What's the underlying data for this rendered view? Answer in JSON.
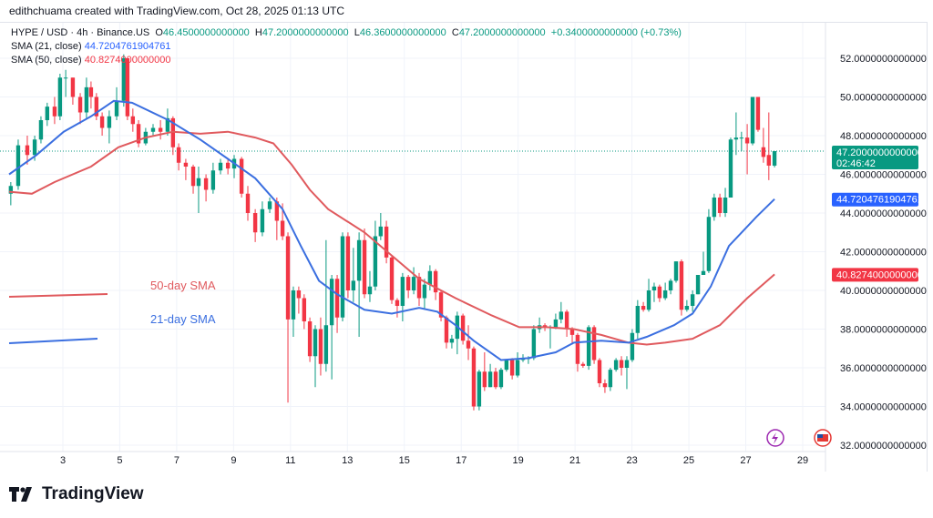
{
  "credit": "edithchuama created with TradingView.com, Oct 28, 2025 01:13 UTC",
  "legend": {
    "symbol": "HYPE / USD · 4h · Binance.US",
    "o_label": "O",
    "o": "46.4500000000000",
    "h_label": "H",
    "h": "47.2000000000000",
    "l_label": "L",
    "l": "46.3600000000000",
    "c_label": "C",
    "c": "47.2000000000000",
    "change": "+0.3400000000000 (+0.73%)",
    "sma21_label": "SMA (21, close)",
    "sma21": "44.7204761904761",
    "sma50_label": "SMA (50, close)",
    "sma50": "40.8274000000000"
  },
  "annotations": {
    "sma50": "50-day SMA",
    "sma21": "21-day SMA"
  },
  "price_labels": {
    "last": "47.2000000000000",
    "countdown": "02:46:42",
    "sma21": "44.7204761904761",
    "sma50": "40.8274000000000"
  },
  "brand": "TradingView",
  "icons": [
    "lightning-icon",
    "us-flag-icon"
  ],
  "colors": {
    "up": "#089981",
    "down": "#f23645",
    "sma21": "#2962ff",
    "sma50": "#f23645",
    "grid": "#f0f3fa"
  },
  "chart_data": {
    "type": "candlestick",
    "xlabel": "",
    "ylabel": "",
    "x_ticks": [
      "3",
      "5",
      "7",
      "9",
      "11",
      "13",
      "15",
      "17",
      "19",
      "21",
      "23",
      "25",
      "27",
      "29"
    ],
    "y_ticks": [
      "52.0000000000000",
      "50.0000000000000",
      "48.0000000000000",
      "46.0000000000000",
      "44.0000000000000",
      "42.0000000000000",
      "40.0000000000000",
      "38.0000000000000",
      "36.0000000000000",
      "34.0000000000000",
      "32.0000000000000"
    ],
    "ylim": [
      32,
      52
    ],
    "xlim_days": [
      1,
      30
    ],
    "grid": true,
    "candles_day_ohlc": [
      [
        1.17,
        45.0,
        45.6,
        44.4,
        45.4
      ],
      [
        1.43,
        45.4,
        47.8,
        45.2,
        47.5
      ],
      [
        1.75,
        47.5,
        48.0,
        46.5,
        47.0
      ],
      [
        2.01,
        47.0,
        48.0,
        46.7,
        47.8
      ],
      [
        2.23,
        47.8,
        49.0,
        47.6,
        48.8
      ],
      [
        2.45,
        48.8,
        49.7,
        48.5,
        49.5
      ],
      [
        2.71,
        49.5,
        50.0,
        48.6,
        49.0
      ],
      [
        2.9,
        49.0,
        51.2,
        48.8,
        51.0
      ],
      [
        3.1,
        51.0,
        51.4,
        50.0,
        51.0
      ],
      [
        3.35,
        51.0,
        51.0,
        49.6,
        50.0
      ],
      [
        3.61,
        50.0,
        50.2,
        48.6,
        49.2
      ],
      [
        3.83,
        49.2,
        51.0,
        48.9,
        50.5
      ],
      [
        3.99,
        50.5,
        50.8,
        49.4,
        50.0
      ],
      [
        4.18,
        50.0,
        50.2,
        48.8,
        49.0
      ],
      [
        4.38,
        49.0,
        49.2,
        48.0,
        48.4
      ],
      [
        4.63,
        48.4,
        49.3,
        47.6,
        49.0
      ],
      [
        4.89,
        49.0,
        50.5,
        48.8,
        49.8
      ],
      [
        5.14,
        49.8,
        52.2,
        49.5,
        52.0
      ],
      [
        5.27,
        52.0,
        52.0,
        48.8,
        49.0
      ],
      [
        5.46,
        49.0,
        49.4,
        48.2,
        48.6
      ],
      [
        5.66,
        48.6,
        48.8,
        47.4,
        47.6
      ],
      [
        5.91,
        47.6,
        48.4,
        47.5,
        48.2
      ],
      [
        6.17,
        48.2,
        48.6,
        48.0,
        48.4
      ],
      [
        6.43,
        48.4,
        48.8,
        47.8,
        48.2
      ],
      [
        6.68,
        48.2,
        49.4,
        48.0,
        48.9
      ],
      [
        6.87,
        48.9,
        49.0,
        47.0,
        47.4
      ],
      [
        7.07,
        47.4,
        47.6,
        46.2,
        46.6
      ],
      [
        7.32,
        46.6,
        46.8,
        45.7,
        46.4
      ],
      [
        7.58,
        46.4,
        46.5,
        45.0,
        45.4
      ],
      [
        7.77,
        45.4,
        46.4,
        44.0,
        45.8
      ],
      [
        8.03,
        45.8,
        46.0,
        44.6,
        45.2
      ],
      [
        8.28,
        45.2,
        46.6,
        45.0,
        46.2
      ],
      [
        8.54,
        46.2,
        46.8,
        46.0,
        46.6
      ],
      [
        8.8,
        46.6,
        46.8,
        46.0,
        46.3
      ],
      [
        9.02,
        46.3,
        47.0,
        45.8,
        46.8
      ],
      [
        9.28,
        46.8,
        46.9,
        44.8,
        45.0
      ],
      [
        9.5,
        45.0,
        45.4,
        43.6,
        44.0
      ],
      [
        9.76,
        44.0,
        44.2,
        42.5,
        43.0
      ],
      [
        10.01,
        43.0,
        44.6,
        42.8,
        44.2
      ],
      [
        10.27,
        44.2,
        44.8,
        44.0,
        44.6
      ],
      [
        10.52,
        44.6,
        44.8,
        42.6,
        43.6
      ],
      [
        10.72,
        43.6,
        44.5,
        42.6,
        42.8
      ],
      [
        10.91,
        42.8,
        43.0,
        34.2,
        38.5
      ],
      [
        11.1,
        38.5,
        40.2,
        37.6,
        40.0
      ],
      [
        11.29,
        40.0,
        40.2,
        38.8,
        39.6
      ],
      [
        11.48,
        39.6,
        39.8,
        38.0,
        38.4
      ],
      [
        11.68,
        38.4,
        38.6,
        36.3,
        36.6
      ],
      [
        11.87,
        36.6,
        38.2,
        35.0,
        38.0
      ],
      [
        12.06,
        38.0,
        38.6,
        35.6,
        36.2
      ],
      [
        12.25,
        36.2,
        42.6,
        35.8,
        38.2
      ],
      [
        12.45,
        38.2,
        40.8,
        35.4,
        40.6
      ],
      [
        12.64,
        40.6,
        40.8,
        37.8,
        38.6
      ],
      [
        12.83,
        38.6,
        43.0,
        38.4,
        42.8
      ],
      [
        13.02,
        42.8,
        43.0,
        39.6,
        40.0
      ],
      [
        13.21,
        40.0,
        42.2,
        39.4,
        40.5
      ],
      [
        13.41,
        40.5,
        43.0,
        37.6,
        42.6
      ],
      [
        13.6,
        42.6,
        43.2,
        39.6,
        39.8
      ],
      [
        13.79,
        39.8,
        41.0,
        39.4,
        40.2
      ],
      [
        13.98,
        40.2,
        43.6,
        40.0,
        42.8
      ],
      [
        14.17,
        42.8,
        44.0,
        42.6,
        43.3
      ],
      [
        14.37,
        43.3,
        43.6,
        41.4,
        41.7
      ],
      [
        14.56,
        41.7,
        41.8,
        39.3,
        39.5
      ],
      [
        14.75,
        39.5,
        39.6,
        38.6,
        39.2
      ],
      [
        14.94,
        39.2,
        40.9,
        38.4,
        40.7
      ],
      [
        15.14,
        40.7,
        40.8,
        39.6,
        40.0
      ],
      [
        15.33,
        40.0,
        41.2,
        39.8,
        40.7
      ],
      [
        15.52,
        40.7,
        40.9,
        39.2,
        39.6
      ],
      [
        15.71,
        39.6,
        40.6,
        39.0,
        40.3
      ],
      [
        15.9,
        40.3,
        41.3,
        40.0,
        41.0
      ],
      [
        16.1,
        41.0,
        41.1,
        39.5,
        39.9
      ],
      [
        16.29,
        39.9,
        40.0,
        38.4,
        38.6
      ],
      [
        16.48,
        38.6,
        38.7,
        37.0,
        37.3
      ],
      [
        16.67,
        37.3,
        37.7,
        37.0,
        37.5
      ],
      [
        16.86,
        37.5,
        38.9,
        36.7,
        38.7
      ],
      [
        17.06,
        38.7,
        38.8,
        37.2,
        37.4
      ],
      [
        17.25,
        37.4,
        38.2,
        36.4,
        37.0
      ],
      [
        17.44,
        37.0,
        37.1,
        33.8,
        34.0
      ],
      [
        17.63,
        34.0,
        35.9,
        33.8,
        35.8
      ],
      [
        17.82,
        35.8,
        36.8,
        34.8,
        35.0
      ],
      [
        18.02,
        35.0,
        36.2,
        35.0,
        35.8
      ],
      [
        18.21,
        35.8,
        36.0,
        34.9,
        35.0
      ],
      [
        18.4,
        35.0,
        36.0,
        34.9,
        35.9
      ],
      [
        18.59,
        35.9,
        36.4,
        35.8,
        36.4
      ],
      [
        18.79,
        36.4,
        36.5,
        35.4,
        35.6
      ],
      [
        18.98,
        35.6,
        36.8,
        35.5,
        36.4
      ],
      [
        19.17,
        36.4,
        36.7,
        36.3,
        36.5
      ],
      [
        19.36,
        36.5,
        36.6,
        36.2,
        36.5
      ],
      [
        19.55,
        36.5,
        38.2,
        36.4,
        38.0
      ],
      [
        19.75,
        38.0,
        38.6,
        37.8,
        38.2
      ],
      [
        19.94,
        38.2,
        38.3,
        37.9,
        38.1
      ],
      [
        20.13,
        38.1,
        38.2,
        37.0,
        38.1
      ],
      [
        20.32,
        38.1,
        38.8,
        38.0,
        38.5
      ],
      [
        20.51,
        38.5,
        39.4,
        38.3,
        38.9
      ],
      [
        20.71,
        38.9,
        39.0,
        37.6,
        38.0
      ],
      [
        20.9,
        38.0,
        38.1,
        37.2,
        37.7
      ],
      [
        21.09,
        37.7,
        37.8,
        35.8,
        36.2
      ],
      [
        21.28,
        36.2,
        36.3,
        36.0,
        36.1
      ],
      [
        21.48,
        36.1,
        38.2,
        35.9,
        38.1
      ],
      [
        21.67,
        38.1,
        38.2,
        36.2,
        36.4
      ],
      [
        21.86,
        36.4,
        36.5,
        35.0,
        35.2
      ],
      [
        22.05,
        35.2,
        35.4,
        34.7,
        35.0
      ],
      [
        22.24,
        35.0,
        36.0,
        34.8,
        35.9
      ],
      [
        22.44,
        35.9,
        36.5,
        35.8,
        36.4
      ],
      [
        22.63,
        36.4,
        36.6,
        35.6,
        36.0
      ],
      [
        22.82,
        36.0,
        36.6,
        34.9,
        36.4
      ],
      [
        23.01,
        36.4,
        38.0,
        36.3,
        37.8
      ],
      [
        23.2,
        37.8,
        39.5,
        37.5,
        39.2
      ],
      [
        23.4,
        39.2,
        39.4,
        38.9,
        39.0
      ],
      [
        23.59,
        39.0,
        40.6,
        38.9,
        40.0
      ],
      [
        23.78,
        40.0,
        40.4,
        39.4,
        40.2
      ],
      [
        23.97,
        40.2,
        40.3,
        39.4,
        39.6
      ],
      [
        24.17,
        39.6,
        40.4,
        39.5,
        40.0
      ],
      [
        24.36,
        40.0,
        40.6,
        39.8,
        40.5
      ],
      [
        24.55,
        40.5,
        41.5,
        40.4,
        41.5
      ],
      [
        24.74,
        41.5,
        41.6,
        38.7,
        39.0
      ],
      [
        24.93,
        39.0,
        39.5,
        38.9,
        39.2
      ],
      [
        25.13,
        39.2,
        40.0,
        38.9,
        39.8
      ],
      [
        25.32,
        39.8,
        40.8,
        39.8,
        40.8
      ],
      [
        25.51,
        40.8,
        42.0,
        40.8,
        41.0
      ],
      [
        25.7,
        41.0,
        44.2,
        40.9,
        43.8
      ],
      [
        25.89,
        43.8,
        45.0,
        43.6,
        44.8
      ],
      [
        26.09,
        44.8,
        45.0,
        43.8,
        44.0
      ],
      [
        26.28,
        44.0,
        45.3,
        43.8,
        44.8
      ],
      [
        26.47,
        44.8,
        47.9,
        44.8,
        47.8
      ],
      [
        26.66,
        47.8,
        49.2,
        47.0,
        47.9
      ],
      [
        26.85,
        47.9,
        48.2,
        47.2,
        47.9
      ],
      [
        27.05,
        47.9,
        48.6,
        46.0,
        47.6
      ],
      [
        27.24,
        47.6,
        50.0,
        47.5,
        50.0
      ],
      [
        27.43,
        50.0,
        50.0,
        48.2,
        48.3
      ],
      [
        27.62,
        47.4,
        48.4,
        46.6,
        46.9
      ],
      [
        27.81,
        47.0,
        49.2,
        45.7,
        46.45
      ],
      [
        28.01,
        46.45,
        47.2,
        46.36,
        47.2
      ]
    ],
    "sma21_day_value": [
      [
        1.11,
        46
      ],
      [
        2.07,
        47
      ],
      [
        3.03,
        48.2
      ],
      [
        3.99,
        49
      ],
      [
        4.79,
        49.8
      ],
      [
        5.43,
        49.7
      ],
      [
        6.71,
        48.8
      ],
      [
        7.83,
        47.8
      ],
      [
        8.8,
        46.8
      ],
      [
        9.76,
        45.8
      ],
      [
        10.72,
        44.2
      ],
      [
        11.36,
        42.3
      ],
      [
        12.0,
        40.5
      ],
      [
        12.64,
        39.8
      ],
      [
        13.6,
        39
      ],
      [
        14.56,
        38.8
      ],
      [
        15.52,
        39.1
      ],
      [
        16.16,
        38.9
      ],
      [
        16.8,
        38.2
      ],
      [
        17.44,
        37.4
      ],
      [
        18.4,
        36.4
      ],
      [
        19.36,
        36.5
      ],
      [
        20.32,
        36.8
      ],
      [
        20.96,
        37.3
      ],
      [
        21.92,
        37.4
      ],
      [
        22.88,
        37.3
      ],
      [
        23.52,
        37.6
      ],
      [
        24.48,
        38.2
      ],
      [
        25.13,
        38.8
      ],
      [
        25.77,
        40.2
      ],
      [
        26.41,
        42.3
      ],
      [
        27.37,
        43.8
      ],
      [
        28.01,
        44.72
      ]
    ],
    "sma50_day_value": [
      [
        1.11,
        45.1
      ],
      [
        1.91,
        45.0
      ],
      [
        2.71,
        45.6
      ],
      [
        3.99,
        46.4
      ],
      [
        4.95,
        47.4
      ],
      [
        5.91,
        47.9
      ],
      [
        6.87,
        48.2
      ],
      [
        7.83,
        48.1
      ],
      [
        8.8,
        48.2
      ],
      [
        9.76,
        47.9
      ],
      [
        10.4,
        47.6
      ],
      [
        11.04,
        46.5
      ],
      [
        11.68,
        45.2
      ],
      [
        12.32,
        44.2
      ],
      [
        13.6,
        43.0
      ],
      [
        14.56,
        41.8
      ],
      [
        15.52,
        40.6
      ],
      [
        16.8,
        39.6
      ],
      [
        18.08,
        38.7
      ],
      [
        19.04,
        38.1
      ],
      [
        20.0,
        38.1
      ],
      [
        20.96,
        38.0
      ],
      [
        21.92,
        37.7
      ],
      [
        22.88,
        37.3
      ],
      [
        23.52,
        37.2
      ],
      [
        24.17,
        37.3
      ],
      [
        25.13,
        37.5
      ],
      [
        26.09,
        38.2
      ],
      [
        27.05,
        39.6
      ],
      [
        28.01,
        40.83
      ]
    ],
    "last_price": 47.2
  }
}
